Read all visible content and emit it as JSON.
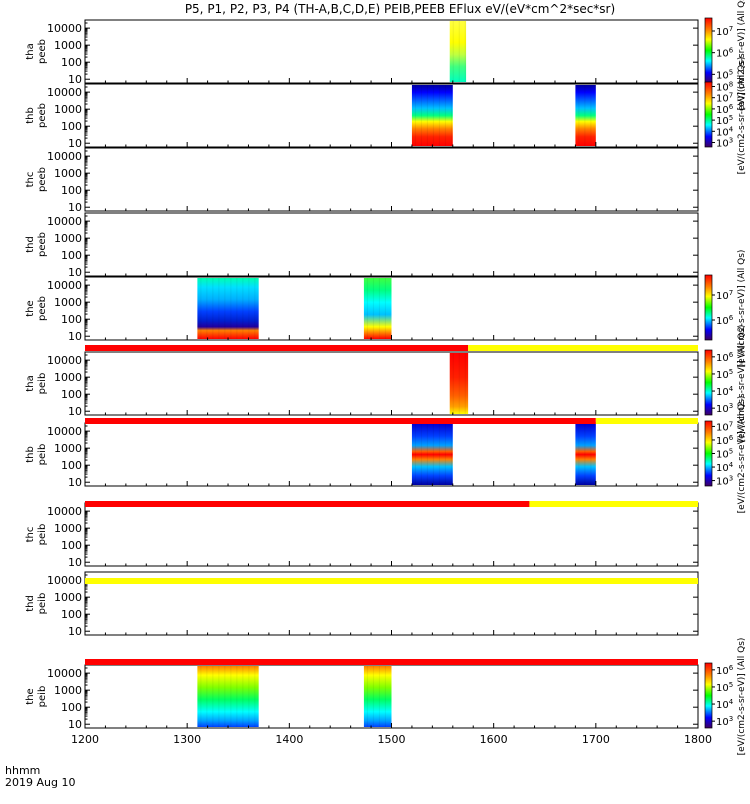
{
  "title": "P5, P1, P2, P3, P4 (TH-A,B,C,D,E) PEIB,PEEB EFlux eV/(eV*cm^2*sec*sr)",
  "footer": {
    "axis_label": "hhmm",
    "date": "2019 Aug 10"
  },
  "colors": {
    "red": "#ff0000",
    "orange": "#ff8000",
    "yellow": "#ffff00",
    "green": "#00ff00",
    "cyan": "#00ffff",
    "blue": "#0000ff",
    "purple": "#500080",
    "black": "#000000",
    "white": "#ffffff"
  },
  "chart_data": {
    "type": "heatmap",
    "x_axis": {
      "range": [
        1200,
        1800
      ],
      "ticks": [
        1200,
        1300,
        1400,
        1500,
        1600,
        1700,
        1800
      ],
      "tick_labels": [
        "1200",
        "1300",
        "1400",
        "1500",
        "1600",
        "1700",
        "1800"
      ]
    },
    "y_axis": {
      "scale": "log",
      "range": [
        6,
        30000
      ],
      "ticks": [
        10,
        100,
        1000,
        10000
      ],
      "tick_labels": [
        "10",
        "100",
        "1000",
        "10000"
      ]
    },
    "panels": [
      {
        "label": [
          "tha",
          "peeb"
        ],
        "colorbar": "peeb",
        "blocks": [
          {
            "x": [
              1557,
              1573
            ],
            "style": "tha_peeb"
          }
        ]
      },
      {
        "label": [
          "thb",
          "peeb"
        ],
        "colorbar": "thb_peeb",
        "blocks": [
          {
            "x": [
              1520,
              1560
            ],
            "style": "thb_peeb"
          },
          {
            "x": [
              1680,
              1700
            ],
            "style": "thb_peeb"
          }
        ]
      },
      {
        "label": [
          "thc",
          "peeb"
        ],
        "colorbar": null,
        "blocks": []
      },
      {
        "label": [
          "thd",
          "peeb"
        ],
        "colorbar": null,
        "blocks": []
      },
      {
        "label": [
          "the",
          "peeb"
        ],
        "colorbar": "the_peeb",
        "blocks": [
          {
            "x": [
              1310,
              1370
            ],
            "style": "the_peeb"
          },
          {
            "x": [
              1473,
              1500
            ],
            "style": "the_peeb2"
          }
        ]
      },
      {
        "label": [
          "tha",
          "peib"
        ],
        "colorbar": "tha_peib",
        "blocks": [
          {
            "x": [
              1557,
              1575
            ],
            "style": "tha_peib"
          }
        ]
      },
      {
        "label": [
          "thb",
          "peib"
        ],
        "colorbar": "thb_peib",
        "blocks": [
          {
            "x": [
              1520,
              1560
            ],
            "style": "thb_peib"
          },
          {
            "x": [
              1680,
              1700
            ],
            "style": "thb_peib"
          }
        ]
      },
      {
        "label": [
          "thc",
          "peib"
        ],
        "colorbar": null,
        "blocks": []
      },
      {
        "label": [
          "thd",
          "peib"
        ],
        "colorbar": null,
        "blocks": []
      },
      {
        "label": [
          "the",
          "peib"
        ],
        "colorbar": "the_peib",
        "blocks": [
          {
            "x": [
              1310,
              1370
            ],
            "style": "the_peib"
          },
          {
            "x": [
              1473,
              1500
            ],
            "style": "the_peib"
          }
        ]
      }
    ],
    "status_bars": [
      {
        "after_panel": 4,
        "segments": [
          {
            "x": [
              1200,
              1575
            ],
            "color": "red"
          },
          {
            "x": [
              1575,
              1800
            ],
            "color": "yellow"
          }
        ]
      },
      {
        "after_panel": 5,
        "segments": [
          {
            "x": [
              1200,
              1700
            ],
            "color": "red"
          },
          {
            "x": [
              1700,
              1800
            ],
            "color": "yellow"
          }
        ]
      },
      {
        "after_panel": 6,
        "segments": [
          {
            "x": [
              1200,
              1635
            ],
            "color": "red"
          },
          {
            "x": [
              1635,
              1800
            ],
            "color": "yellow"
          }
        ]
      },
      {
        "after_panel": 7,
        "segments": [
          {
            "x": [
              1200,
              1800
            ],
            "color": "yellow"
          }
        ]
      },
      {
        "after_panel": 8,
        "segments": [
          {
            "x": [
              1200,
              1800
            ],
            "color": "red"
          }
        ]
      }
    ],
    "colorbars": {
      "peeb": {
        "ticks": [
          [
            "10^7",
            7
          ],
          [
            "10^6",
            6
          ],
          [
            "10^5",
            5
          ]
        ],
        "range": [
          4.6,
          7.6
        ],
        "label": "[eV/(cm2-s-sr-eV)] (All Qs)"
      },
      "thb_peeb": {
        "ticks": [
          [
            "10^8",
            8
          ],
          [
            "10^7",
            7
          ],
          [
            "10^6",
            6
          ],
          [
            "10^5",
            5
          ],
          [
            "10^4",
            4
          ],
          [
            "10^3",
            3
          ]
        ],
        "range": [
          2.6,
          8.4
        ],
        "label": "[eV/(cm2-s-sr-eV)] (All Qs)"
      },
      "the_peeb": {
        "ticks": [
          [
            "10^7",
            7
          ],
          [
            "10^6",
            6
          ]
        ],
        "range": [
          5.2,
          7.8
        ],
        "label": "[eV/(cm2-s-sr-eV)] (All Qs)"
      },
      "tha_peib": {
        "ticks": [
          [
            "10^6",
            6
          ],
          [
            "10^5",
            5
          ],
          [
            "10^4",
            4
          ],
          [
            "10^3",
            3
          ]
        ],
        "range": [
          2.6,
          6.4
        ],
        "label": "[eV/(cm2-s-sr-eV)] (All Qs)"
      },
      "thb_peib": {
        "ticks": [
          [
            "10^7",
            7
          ],
          [
            "10^6",
            6
          ],
          [
            "10^5",
            5
          ],
          [
            "10^4",
            4
          ],
          [
            "10^3",
            3
          ]
        ],
        "range": [
          2.6,
          7.4
        ],
        "label": "[eV/(cm2-s-sr-eV)] (All Qs)"
      },
      "the_peib": {
        "ticks": [
          [
            "10^6",
            6
          ],
          [
            "10^5",
            5
          ],
          [
            "10^4",
            4
          ],
          [
            "10^3",
            3
          ]
        ],
        "range": [
          2.6,
          6.4
        ],
        "label": "[eV/(cm2-s-sr-eV)] (All Qs)"
      }
    }
  }
}
